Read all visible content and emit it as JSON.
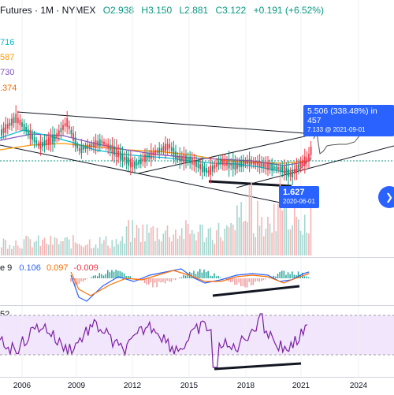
{
  "header": {
    "symbol": "Futures · 1M · NYMEX",
    "open": "O2.938",
    "high": "H3.150",
    "low": "L2.881",
    "close": "C3.122",
    "change": "+0.191 (+6.52%)"
  },
  "ma_values": [
    {
      "text": "716",
      "color": "#00bcd4"
    },
    {
      "text": "587",
      "color": "#ff9800"
    },
    {
      "text": "730",
      "color": "#7e57c2"
    },
    {
      "text": ".374",
      "color": "#ef6c00"
    }
  ],
  "badges": {
    "measure_line1": "5.506 (338.48%) in 457",
    "measure_line2": "7.133 @ 2021-09-01",
    "low_price": "1.627",
    "low_date": "2020-06-01"
  },
  "macd": {
    "label": "e 9",
    "v1": "0.106",
    "v2": "0.097",
    "v3": "-0.009"
  },
  "rsi": {
    "label": "52"
  },
  "xaxis": {
    "ticks": [
      "2006",
      "2009",
      "2012",
      "2015",
      "2018",
      "2021",
      "2024"
    ]
  },
  "colors": {
    "up": "#089981",
    "down": "#f23645",
    "accent": "#2962ff",
    "rsi_line": "#7b1fa2"
  },
  "icons": {
    "scroll": "chevron-right-icon"
  }
}
